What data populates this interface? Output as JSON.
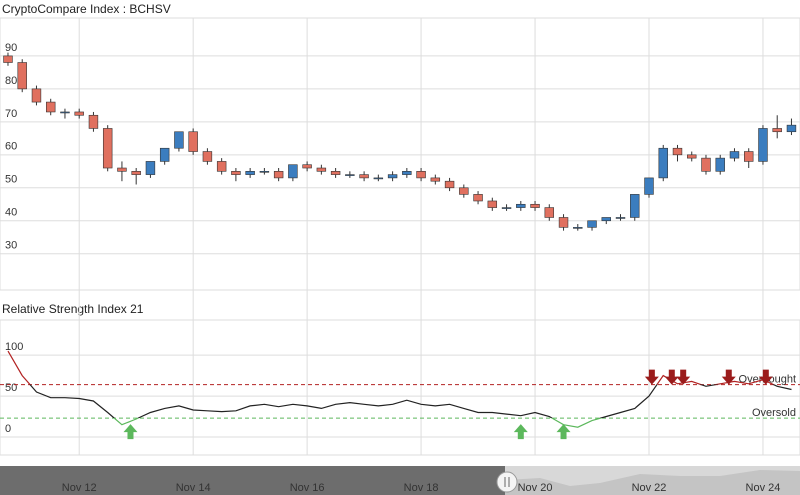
{
  "chart_data": [
    {
      "type": "candlestick",
      "title": "CryptoCompare Index : BCHSV",
      "x": [
        10.75,
        11,
        11.25,
        11.5,
        11.75,
        12,
        12.25,
        12.5,
        12.75,
        13,
        13.25,
        13.5,
        13.75,
        14,
        14.25,
        14.5,
        14.75,
        15,
        15.25,
        15.5,
        15.75,
        16,
        16.25,
        16.5,
        16.75,
        17,
        17.25,
        17.5,
        17.75,
        18,
        18.25,
        18.5,
        18.75,
        19,
        19.25,
        19.5,
        19.75,
        20,
        20.25,
        20.5,
        20.75,
        21,
        21.25,
        21.5,
        21.75,
        22,
        22.25,
        22.5,
        22.75,
        23,
        23.25,
        23.5,
        23.75,
        24,
        24.25,
        24.5
      ],
      "open": [
        90,
        88,
        80,
        76,
        73,
        73,
        72,
        68,
        56,
        55,
        54,
        58,
        62,
        67,
        61,
        58,
        55,
        54,
        55,
        55,
        53,
        57,
        56,
        55,
        54,
        54,
        53,
        53,
        54,
        55,
        53,
        52,
        50,
        48,
        46,
        44,
        44,
        45,
        44,
        41,
        38,
        38,
        40,
        41,
        41,
        48,
        53,
        62,
        60,
        59,
        55,
        59,
        61,
        58,
        68,
        67
      ],
      "high": [
        91,
        89,
        81,
        77,
        74,
        74,
        73,
        69,
        58,
        56,
        58,
        62,
        67,
        68,
        62,
        59,
        56,
        56,
        56,
        56,
        57,
        58,
        57,
        56,
        55,
        55,
        54,
        55,
        56,
        56,
        54,
        53,
        51,
        49,
        47,
        45,
        46,
        46,
        45,
        42,
        39,
        40,
        41,
        42,
        48,
        53,
        63,
        63,
        61,
        60,
        60,
        62,
        62,
        69,
        72,
        71
      ],
      "low": [
        87,
        79,
        75,
        72,
        71,
        71,
        67,
        55,
        52,
        51,
        53,
        57,
        61,
        60,
        57,
        54,
        52,
        53,
        54,
        52,
        52,
        55,
        54,
        53,
        53,
        52,
        52,
        52,
        53,
        52,
        51,
        49,
        47,
        45,
        43,
        43,
        43,
        43,
        40,
        37,
        37,
        37,
        39,
        40,
        40,
        47,
        52,
        58,
        58,
        54,
        54,
        58,
        56,
        57,
        65,
        66
      ],
      "close": [
        88,
        80,
        76,
        73,
        73,
        72,
        68,
        56,
        55,
        54,
        58,
        62,
        67,
        61,
        58,
        55,
        54,
        55,
        55,
        53,
        57,
        56,
        55,
        54,
        54,
        53,
        53,
        54,
        55,
        53,
        52,
        50,
        48,
        46,
        44,
        44,
        45,
        44,
        41,
        38,
        38,
        40,
        41,
        41,
        48,
        53,
        62,
        60,
        59,
        55,
        59,
        61,
        58,
        68,
        67,
        69
      ],
      "up_color": "#3b7dbf",
      "down_color": "#e0705f",
      "xlim": [
        10.61,
        24.65
      ],
      "ylim": [
        19,
        101.5
      ],
      "yticks": [
        30,
        40,
        50,
        60,
        70,
        80,
        90
      ],
      "xticks": [
        {
          "value": 12,
          "label": "Nov 12"
        },
        {
          "value": 14,
          "label": "Nov 14"
        },
        {
          "value": 16,
          "label": "Nov 16"
        },
        {
          "value": 18,
          "label": "Nov 18"
        },
        {
          "value": 20,
          "label": "Nov 20"
        },
        {
          "value": 22,
          "label": "Nov 22"
        },
        {
          "value": 24,
          "label": "Nov 24"
        }
      ],
      "grid": true
    },
    {
      "type": "line",
      "title": "Relative Strength Index 21",
      "x": [
        10.75,
        11,
        11.25,
        11.5,
        11.75,
        12,
        12.25,
        12.5,
        12.75,
        13,
        13.25,
        13.5,
        13.75,
        14,
        14.25,
        14.5,
        14.75,
        15,
        15.25,
        15.5,
        15.75,
        16,
        16.25,
        16.5,
        16.75,
        17,
        17.25,
        17.5,
        17.75,
        18,
        18.25,
        18.5,
        18.75,
        19,
        19.25,
        19.5,
        19.75,
        20,
        20.25,
        20.5,
        20.75,
        21,
        21.25,
        21.5,
        21.75,
        22,
        22.25,
        22.5,
        22.75,
        23,
        23.25,
        23.5,
        23.75,
        24,
        24.25,
        24.5
      ],
      "values": [
        105,
        75,
        55,
        48,
        48,
        47,
        44,
        30,
        15,
        22,
        30,
        35,
        38,
        33,
        32,
        31,
        32,
        38,
        40,
        37,
        40,
        38,
        35,
        40,
        42,
        40,
        38,
        40,
        45,
        40,
        38,
        40,
        35,
        30,
        30,
        28,
        26,
        30,
        25,
        15,
        12,
        20,
        25,
        30,
        35,
        50,
        75,
        65,
        68,
        62,
        65,
        68,
        65,
        70,
        62,
        58
      ],
      "color": "#222222",
      "overbought": 64,
      "overbought_label": "Overbought",
      "overbought_color": "#b22222",
      "oversold": 23,
      "oversold_label": "Oversold",
      "oversold_color": "#5cb85c",
      "buy_signals": [
        12.9,
        19.75,
        20.5
      ],
      "sell_signals": [
        22.05,
        22.4,
        22.6,
        23.4,
        24.05
      ],
      "xlim": [
        10.61,
        24.65
      ],
      "ylim": [
        -22,
        143
      ],
      "yticks": [
        0,
        50,
        100
      ],
      "grid": true
    }
  ]
}
